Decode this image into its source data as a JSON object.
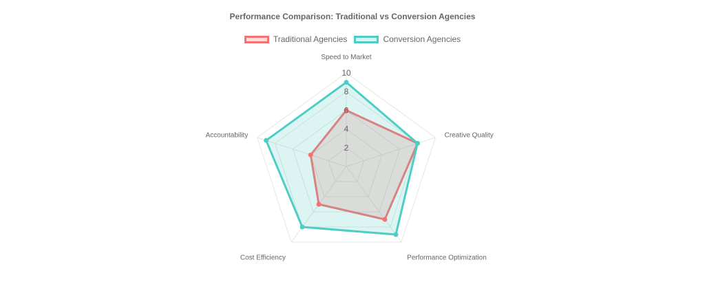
{
  "chart_data": {
    "type": "radar",
    "title": "Performance Comparison: Traditional vs Conversion Agencies",
    "categories": [
      "Speed to Market",
      "Creative Quality",
      "Performance Optimization",
      "Cost Efficiency",
      "Accountability"
    ],
    "range": [
      0,
      10
    ],
    "ticks": [
      "2",
      "4",
      "6",
      "8",
      "10"
    ],
    "grid": true,
    "legend_position": "top",
    "series": [
      {
        "name": "Traditional Agencies",
        "values": [
          6,
          8,
          7,
          5,
          4
        ],
        "color": "#f87171",
        "fill": "rgba(248,113,113,0.22)"
      },
      {
        "name": "Conversion Agencies",
        "values": [
          9,
          8,
          9,
          8,
          9
        ],
        "color": "#4ecdc4",
        "fill": "rgba(78,205,196,0.20)"
      }
    ]
  }
}
